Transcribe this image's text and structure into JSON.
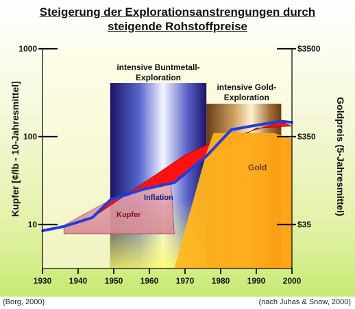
{
  "chart_data": {
    "type": "line",
    "title": "Steigerung der Explorationsanstrengungen durch",
    "subtitle": "steigende Rohstoffpreise",
    "ylabel": "Kupfer [¢/lb - 10-Jahresmittel]",
    "ylabel_right": "Goldpreis (5-Jahresmittel)",
    "xlim": [
      1930,
      2000
    ],
    "ylim": [
      10,
      1000
    ],
    "yscale": "log",
    "x_ticks": [
      "1930",
      "1940",
      "1950",
      "1960",
      "1970",
      "1980",
      "1990",
      "2000"
    ],
    "y_ticks_left": [
      "1000",
      "100",
      "10"
    ],
    "y_ticks_right": [
      "$3500",
      "$350",
      "$35"
    ],
    "series": [
      {
        "name": "",
        "color": "#1e3de0",
        "x": [
          1930,
          1936,
          1944,
          1949,
          1958,
          1967,
          1976,
          1983,
          1990,
          1997,
          2000
        ],
        "y": [
          8.5,
          9.5,
          12,
          19,
          25,
          30,
          60,
          120,
          135,
          150,
          145
        ]
      }
    ],
    "annotations": {
      "explorations": [
        {
          "text": "intensive Buntmetall-\nExploration",
          "x_start": 1949,
          "x_end": 1976
        },
        {
          "text": "intensive Gold-\nExploration",
          "x_start": 1976,
          "x_end": 1997
        }
      ],
      "areas": [
        {
          "label": "Kupfer"
        },
        {
          "label": "Inflation"
        },
        {
          "label": "Gold"
        }
      ]
    }
  },
  "source_left": "(Borg, 2000)",
  "source_right": "(nach Juhas & Snow, 2000)"
}
